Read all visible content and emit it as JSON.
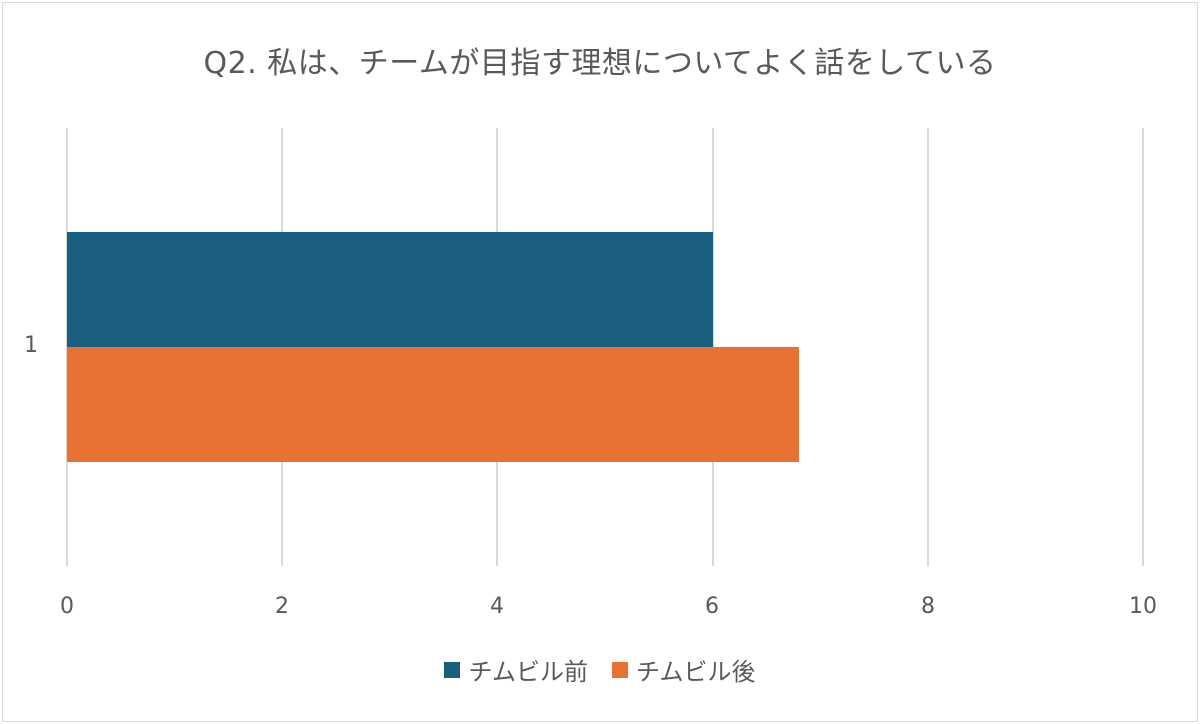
{
  "chart_data": {
    "type": "bar",
    "orientation": "horizontal",
    "title": "Q2. 私は、チームが目指す理想についてよく話をしている",
    "categories": [
      "1"
    ],
    "series": [
      {
        "name": "チムビル前",
        "values": [
          6.0
        ],
        "color": "#1a5f80"
      },
      {
        "name": "チムビル後",
        "values": [
          6.8
        ],
        "color": "#e87234"
      }
    ],
    "xlabel": "",
    "ylabel": "",
    "xlim": [
      0,
      10
    ],
    "xticks": [
      "0",
      "2",
      "4",
      "6",
      "8",
      "10"
    ],
    "grid": true,
    "legend_position": "bottom"
  },
  "title": "Q2. 私は、チームが目指す理想についてよく話をしている",
  "yaxis": {
    "category_label": "1"
  },
  "xaxis": {
    "ticks": [
      "0",
      "2",
      "4",
      "6",
      "8",
      "10"
    ]
  },
  "legend": [
    {
      "label": "チムビル前",
      "color": "#1a5f80"
    },
    {
      "label": "チムビル後",
      "color": "#e87234"
    }
  ]
}
